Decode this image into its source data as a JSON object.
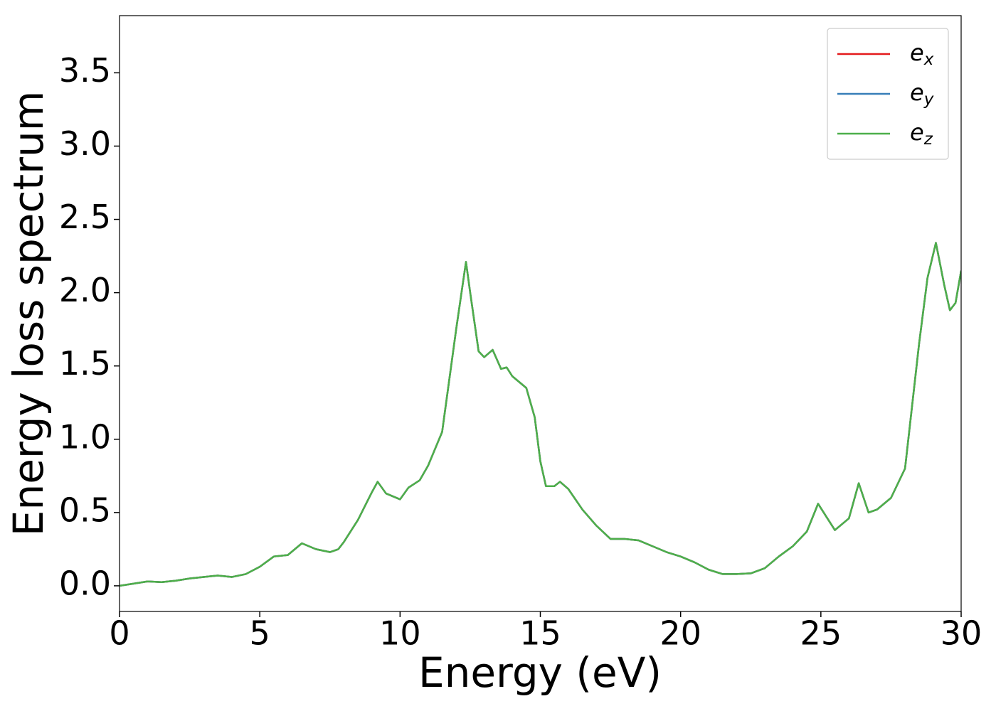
{
  "chart_data": {
    "type": "line",
    "xlabel": "Energy (eV)",
    "ylabel": "Energy loss spectrum",
    "x": [
      0,
      0.5,
      1.0,
      1.5,
      2.0,
      2.5,
      3.0,
      3.5,
      4.0,
      4.5,
      5.0,
      5.5,
      6.0,
      6.5,
      7.0,
      7.5,
      7.8,
      8.0,
      8.5,
      9.0,
      9.2,
      9.5,
      10.0,
      10.3,
      10.7,
      11.0,
      11.5,
      12.0,
      12.35,
      12.5,
      12.8,
      13.0,
      13.3,
      13.6,
      13.8,
      14.0,
      14.5,
      14.8,
      15.0,
      15.2,
      15.5,
      15.7,
      16.0,
      16.5,
      17.0,
      17.5,
      18.0,
      18.5,
      19.0,
      19.5,
      20.0,
      20.5,
      21.0,
      21.5,
      22.0,
      22.5,
      23.0,
      23.5,
      24.0,
      24.5,
      24.9,
      25.2,
      25.5,
      26.0,
      26.35,
      26.7,
      27.0,
      27.5,
      28.0,
      28.5,
      28.8,
      29.1,
      29.4,
      29.6,
      29.8,
      30.0
    ],
    "series": [
      {
        "name": "ex",
        "color": "#e41a1c",
        "values": [
          0.0,
          0.015,
          0.03,
          0.025,
          0.035,
          0.05,
          0.06,
          0.07,
          0.06,
          0.08,
          0.13,
          0.2,
          0.21,
          0.29,
          0.25,
          0.23,
          0.25,
          0.3,
          0.45,
          0.64,
          0.71,
          0.63,
          0.59,
          0.67,
          0.72,
          0.82,
          1.05,
          1.75,
          2.21,
          2.0,
          1.6,
          1.56,
          1.61,
          1.48,
          1.49,
          1.43,
          1.35,
          1.15,
          0.85,
          0.68,
          0.68,
          0.71,
          0.66,
          0.52,
          0.41,
          0.32,
          0.32,
          0.31,
          0.27,
          0.23,
          0.2,
          0.16,
          0.11,
          0.08,
          0.08,
          0.085,
          0.12,
          0.2,
          0.27,
          0.37,
          0.56,
          0.47,
          0.38,
          0.46,
          0.7,
          0.5,
          0.52,
          0.6,
          0.8,
          1.65,
          2.1,
          2.34,
          2.05,
          1.88,
          1.93,
          2.15
        ]
      },
      {
        "name": "ey",
        "color": "#377eb8",
        "values": [
          0.0,
          0.015,
          0.03,
          0.025,
          0.035,
          0.05,
          0.06,
          0.07,
          0.06,
          0.08,
          0.13,
          0.2,
          0.21,
          0.29,
          0.25,
          0.23,
          0.25,
          0.3,
          0.45,
          0.64,
          0.71,
          0.63,
          0.59,
          0.67,
          0.72,
          0.82,
          1.05,
          1.75,
          2.21,
          2.0,
          1.6,
          1.56,
          1.61,
          1.48,
          1.49,
          1.43,
          1.35,
          1.15,
          0.85,
          0.68,
          0.68,
          0.71,
          0.66,
          0.52,
          0.41,
          0.32,
          0.32,
          0.31,
          0.27,
          0.23,
          0.2,
          0.16,
          0.11,
          0.08,
          0.08,
          0.085,
          0.12,
          0.2,
          0.27,
          0.37,
          0.56,
          0.47,
          0.38,
          0.46,
          0.7,
          0.5,
          0.52,
          0.6,
          0.8,
          1.65,
          2.1,
          2.34,
          2.05,
          1.88,
          1.93,
          2.15
        ]
      },
      {
        "name": "ez",
        "color": "#4daf4a",
        "values": [
          0.0,
          0.015,
          0.03,
          0.025,
          0.035,
          0.05,
          0.06,
          0.07,
          0.06,
          0.08,
          0.13,
          0.2,
          0.21,
          0.29,
          0.25,
          0.23,
          0.25,
          0.3,
          0.45,
          0.64,
          0.71,
          0.63,
          0.59,
          0.67,
          0.72,
          0.82,
          1.05,
          1.75,
          2.21,
          2.0,
          1.6,
          1.56,
          1.61,
          1.48,
          1.49,
          1.43,
          1.35,
          1.15,
          0.85,
          0.68,
          0.68,
          0.71,
          0.66,
          0.52,
          0.41,
          0.32,
          0.32,
          0.31,
          0.27,
          0.23,
          0.2,
          0.16,
          0.11,
          0.08,
          0.08,
          0.085,
          0.12,
          0.2,
          0.27,
          0.37,
          0.56,
          0.47,
          0.38,
          0.46,
          0.7,
          0.5,
          0.52,
          0.6,
          0.8,
          1.65,
          2.1,
          2.34,
          2.05,
          1.88,
          1.93,
          2.15
        ]
      }
    ],
    "xlim": [
      0,
      30
    ],
    "xticks": [
      0,
      5,
      10,
      15,
      20,
      25,
      30
    ],
    "ylim": [
      -0.175,
      3.89
    ],
    "yticks": [
      {
        "value": 0,
        "label": "0.0"
      },
      0.5,
      {
        "value": 1,
        "label": "1.0"
      },
      1.5,
      {
        "value": 2,
        "label": "2.0"
      },
      2.5,
      {
        "value": 3,
        "label": "3.0"
      },
      3.5
    ],
    "legend": "upper right"
  }
}
